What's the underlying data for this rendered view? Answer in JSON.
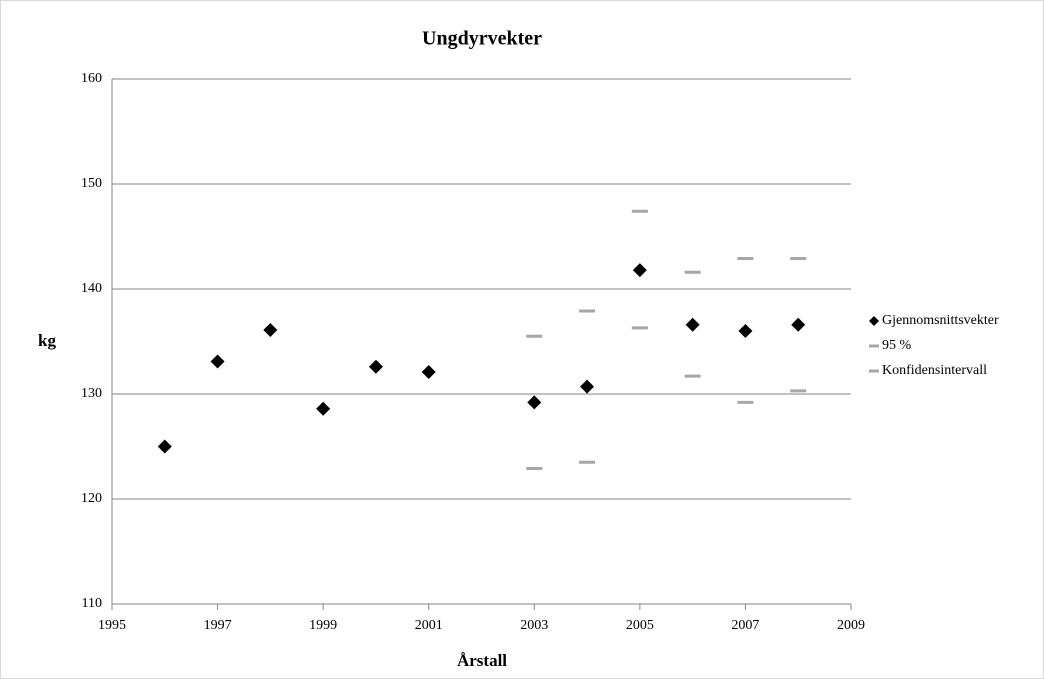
{
  "chart_data": {
    "type": "scatter",
    "title": "Ungdyrvekter",
    "x_label": "Årstall",
    "y_label": "kg",
    "x": [
      1996,
      1997,
      1998,
      1999,
      2000,
      2001,
      2003,
      2004,
      2005,
      2006,
      2007,
      2008
    ],
    "series": [
      {
        "name": "Gjennomsnittsvekter",
        "color": "#000000",
        "marker": "diamond",
        "values": [
          125.0,
          133.1,
          136.1,
          128.6,
          132.6,
          132.1,
          129.2,
          130.7,
          141.8,
          136.6,
          136.0,
          136.6
        ]
      },
      {
        "name": "95 %",
        "color": "#a6a6a6",
        "marker": "dash",
        "values": [
          null,
          null,
          null,
          null,
          null,
          null,
          135.5,
          137.9,
          147.4,
          141.6,
          142.9,
          142.9
        ]
      },
      {
        "name": "Konfidensintervall",
        "color": "#a6a6a6",
        "marker": "dash",
        "values": [
          null,
          null,
          null,
          null,
          null,
          null,
          122.9,
          123.5,
          136.3,
          131.7,
          129.2,
          130.3
        ]
      }
    ],
    "xlim": [
      1995,
      2009
    ],
    "xticks": [
      1995,
      1997,
      1999,
      2001,
      2003,
      2005,
      2007,
      2009
    ],
    "ylim": [
      110,
      160
    ],
    "yticks": [
      110,
      120,
      130,
      140,
      150,
      160
    ],
    "grid": true,
    "legend": "right"
  }
}
